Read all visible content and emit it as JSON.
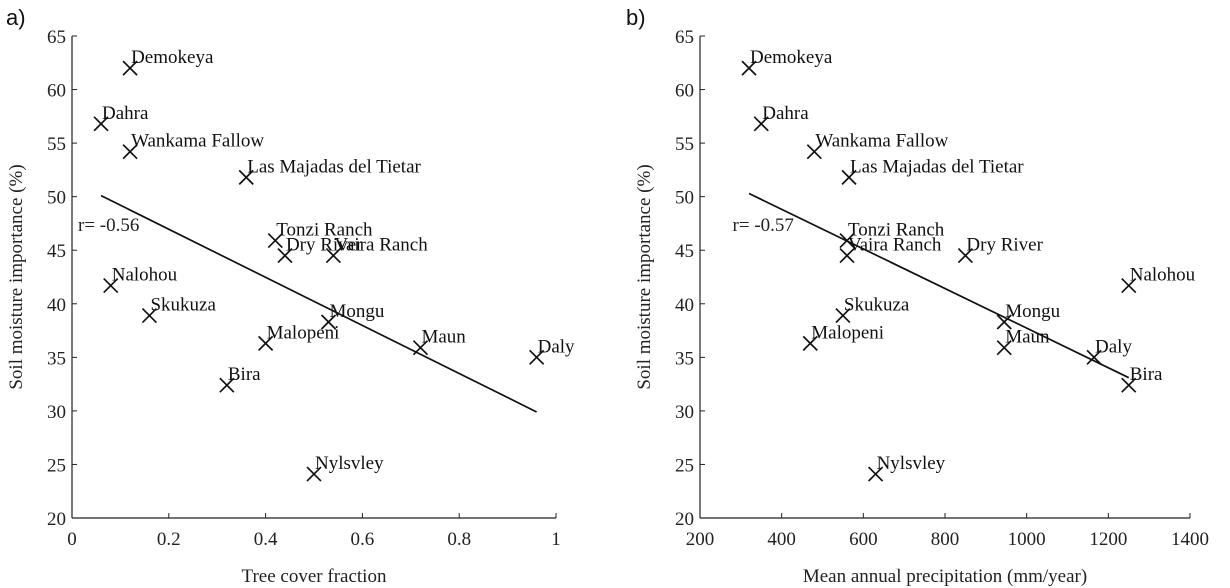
{
  "chart_data": [
    {
      "type": "scatter",
      "panel_label": "a)",
      "xlabel": "Tree cover fraction",
      "ylabel": "Soil moisture importance (%)",
      "xlim": [
        0,
        1
      ],
      "ylim": [
        20,
        65
      ],
      "xticks": [
        0,
        0.2,
        0.4,
        0.6,
        0.8,
        1
      ],
      "xtick_labels": [
        "0",
        "0.2",
        "0.4",
        "0.6",
        "0.8",
        "1"
      ],
      "yticks": [
        20,
        25,
        30,
        35,
        40,
        45,
        50,
        55,
        60,
        65
      ],
      "ytick_labels": [
        "20",
        "25",
        "30",
        "35",
        "40",
        "45",
        "50",
        "55",
        "60",
        "65"
      ],
      "annotation": "r= -0.56",
      "annotation_at": [
        0.0,
        46.8
      ],
      "fit_line": [
        [
          0.06,
          50.1
        ],
        [
          0.96,
          29.9
        ]
      ],
      "points": [
        {
          "label": "Demokeya",
          "x": 0.12,
          "y": 62.0
        },
        {
          "label": "Dahra",
          "x": 0.06,
          "y": 56.8
        },
        {
          "label": "Wankama Fallow",
          "x": 0.12,
          "y": 54.2
        },
        {
          "label": "Las Majadas del Tietar",
          "x": 0.36,
          "y": 51.8
        },
        {
          "label": "Tonzi Ranch",
          "x": 0.42,
          "y": 45.9
        },
        {
          "label": "Dry River",
          "x": 0.44,
          "y": 44.5
        },
        {
          "label": "Vaira Ranch",
          "x": 0.54,
          "y": 44.5
        },
        {
          "label": "Nalohou",
          "x": 0.08,
          "y": 41.7
        },
        {
          "label": "Skukuza",
          "x": 0.16,
          "y": 38.9
        },
        {
          "label": "Mongu",
          "x": 0.53,
          "y": 38.3
        },
        {
          "label": "Malopeni",
          "x": 0.4,
          "y": 36.3
        },
        {
          "label": "Maun",
          "x": 0.72,
          "y": 35.9
        },
        {
          "label": "Daly",
          "x": 0.96,
          "y": 35.0
        },
        {
          "label": "Bira",
          "x": 0.32,
          "y": 32.4
        },
        {
          "label": "Nylsvley",
          "x": 0.5,
          "y": 24.1
        }
      ]
    },
    {
      "type": "scatter",
      "panel_label": "b)",
      "xlabel": "Mean annual precipitation (mm/year)",
      "ylabel": "Soil moisture importance (%)",
      "xlim": [
        200,
        1400
      ],
      "ylim": [
        20,
        65
      ],
      "xticks": [
        200,
        400,
        600,
        800,
        1000,
        1200,
        1400
      ],
      "xtick_labels": [
        "200",
        "400",
        "600",
        "800",
        "1000",
        "1200",
        "1400"
      ],
      "yticks": [
        20,
        25,
        30,
        35,
        40,
        45,
        50,
        55,
        60,
        65
      ],
      "ytick_labels": [
        "20",
        "25",
        "30",
        "35",
        "40",
        "45",
        "50",
        "55",
        "60",
        "65"
      ],
      "annotation": "r= -0.57",
      "annotation_at": [
        265,
        46.8
      ],
      "fit_line": [
        [
          320,
          50.3
        ],
        [
          1250,
          33.1
        ]
      ],
      "points": [
        {
          "label": "Demokeya",
          "x": 320,
          "y": 62.0
        },
        {
          "label": "Dahra",
          "x": 350,
          "y": 56.8
        },
        {
          "label": "Wankama Fallow",
          "x": 480,
          "y": 54.2
        },
        {
          "label": "Las Majadas del Tietar",
          "x": 565,
          "y": 51.8
        },
        {
          "label": "Tonzi Ranch",
          "x": 560,
          "y": 45.9
        },
        {
          "label": "Vaira Ranch",
          "x": 560,
          "y": 44.5
        },
        {
          "label": "Dry River",
          "x": 850,
          "y": 44.5
        },
        {
          "label": "Nalohou",
          "x": 1250,
          "y": 41.7
        },
        {
          "label": "Skukuza",
          "x": 550,
          "y": 38.9
        },
        {
          "label": "Mongu",
          "x": 945,
          "y": 38.3
        },
        {
          "label": "Malopeni",
          "x": 470,
          "y": 36.3
        },
        {
          "label": "Maun",
          "x": 945,
          "y": 35.9
        },
        {
          "label": "Daly",
          "x": 1165,
          "y": 35.0
        },
        {
          "label": "Bira",
          "x": 1250,
          "y": 32.4
        },
        {
          "label": "Nylsvley",
          "x": 630,
          "y": 24.1
        }
      ]
    }
  ]
}
